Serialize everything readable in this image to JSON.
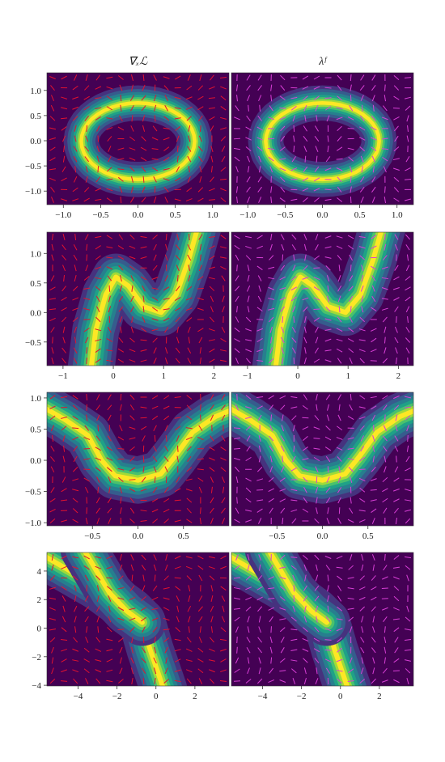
{
  "chart_data": [
    {
      "type": "contour",
      "title": "∇ₓℒ",
      "xlim": [
        -1.22,
        1.22
      ],
      "ylim": [
        -1.27,
        1.35
      ],
      "xticks": [
        {
          "value": -1,
          "label": "−1.0"
        },
        {
          "value": -0.5,
          "label": "−0.5"
        },
        {
          "value": 0,
          "label": "0.0"
        },
        {
          "value": 0.5,
          "label": "0.5"
        },
        {
          "value": 1,
          "label": "1.0"
        }
      ],
      "yticks": [
        {
          "value": -1,
          "label": "−1.0"
        },
        {
          "value": -0.5,
          "label": "−0.5"
        },
        {
          "value": 0,
          "label": "0.0"
        },
        {
          "value": 0.5,
          "label": "0.5"
        },
        {
          "value": 1,
          "label": "1.0"
        }
      ]
    },
    {
      "type": "contour",
      "title": "λᶠ",
      "xlim": [
        -1.22,
        1.22
      ],
      "ylim": [
        -1.27,
        1.35
      ],
      "xticks": [
        {
          "value": -1,
          "label": "−1.0"
        },
        {
          "value": -0.5,
          "label": "−0.5"
        },
        {
          "value": 0,
          "label": "0.0"
        },
        {
          "value": 0.5,
          "label": "0.5"
        },
        {
          "value": 1,
          "label": "1.0"
        }
      ]
    },
    {
      "type": "contour",
      "xlim": [
        -1.32,
        2.3
      ],
      "ylim": [
        -0.9,
        1.36
      ],
      "xticks": [
        {
          "value": -1,
          "label": "−1"
        },
        0,
        1,
        2
      ],
      "yticks": [
        {
          "value": -0.5,
          "label": "−0.5"
        },
        {
          "value": 0,
          "label": "0.0"
        },
        {
          "value": 0.5,
          "label": "0.5"
        },
        {
          "value": 1,
          "label": "1.0"
        }
      ]
    },
    {
      "type": "contour",
      "xlim": [
        -1.32,
        2.3
      ],
      "ylim": [
        -0.9,
        1.36
      ],
      "xticks": [
        {
          "value": -1,
          "label": "−1"
        },
        0,
        1,
        2
      ]
    },
    {
      "type": "contour",
      "xlim": [
        -1.0,
        1.0
      ],
      "ylim": [
        -1.05,
        1.09
      ],
      "xticks": [
        {
          "value": -0.5,
          "label": "−0.5"
        },
        {
          "value": 0,
          "label": "0.0"
        },
        {
          "value": 0.5,
          "label": "0.5"
        }
      ],
      "yticks": [
        {
          "value": -1,
          "label": "−1.0"
        },
        {
          "value": -0.5,
          "label": "−0.5"
        },
        {
          "value": 0,
          "label": "0.0"
        },
        {
          "value": 0.5,
          "label": "0.5"
        },
        {
          "value": 1,
          "label": "1.0"
        }
      ]
    },
    {
      "type": "contour",
      "xlim": [
        -1.0,
        1.0
      ],
      "ylim": [
        -1.05,
        1.09
      ],
      "xticks": [
        {
          "value": -0.5,
          "label": "−0.5"
        },
        {
          "value": 0,
          "label": "0.0"
        },
        {
          "value": 0.5,
          "label": "0.5"
        }
      ]
    },
    {
      "type": "contour",
      "xlim": [
        -5.6,
        3.75
      ],
      "ylim": [
        -4.05,
        5.3
      ],
      "xticks": [
        {
          "value": -4,
          "label": "−4"
        },
        {
          "value": -2,
          "label": "−2"
        },
        0,
        2
      ],
      "yticks": [
        {
          "value": -4,
          "label": "−4"
        },
        {
          "value": -2,
          "label": "−2"
        },
        0,
        2,
        4
      ]
    },
    {
      "type": "contour",
      "xlim": [
        -5.6,
        3.75
      ],
      "ylim": [
        -4.05,
        5.3
      ],
      "xticks": [
        {
          "value": -4,
          "label": "−4"
        },
        {
          "value": -2,
          "label": "−2"
        },
        0,
        2
      ]
    }
  ]
}
